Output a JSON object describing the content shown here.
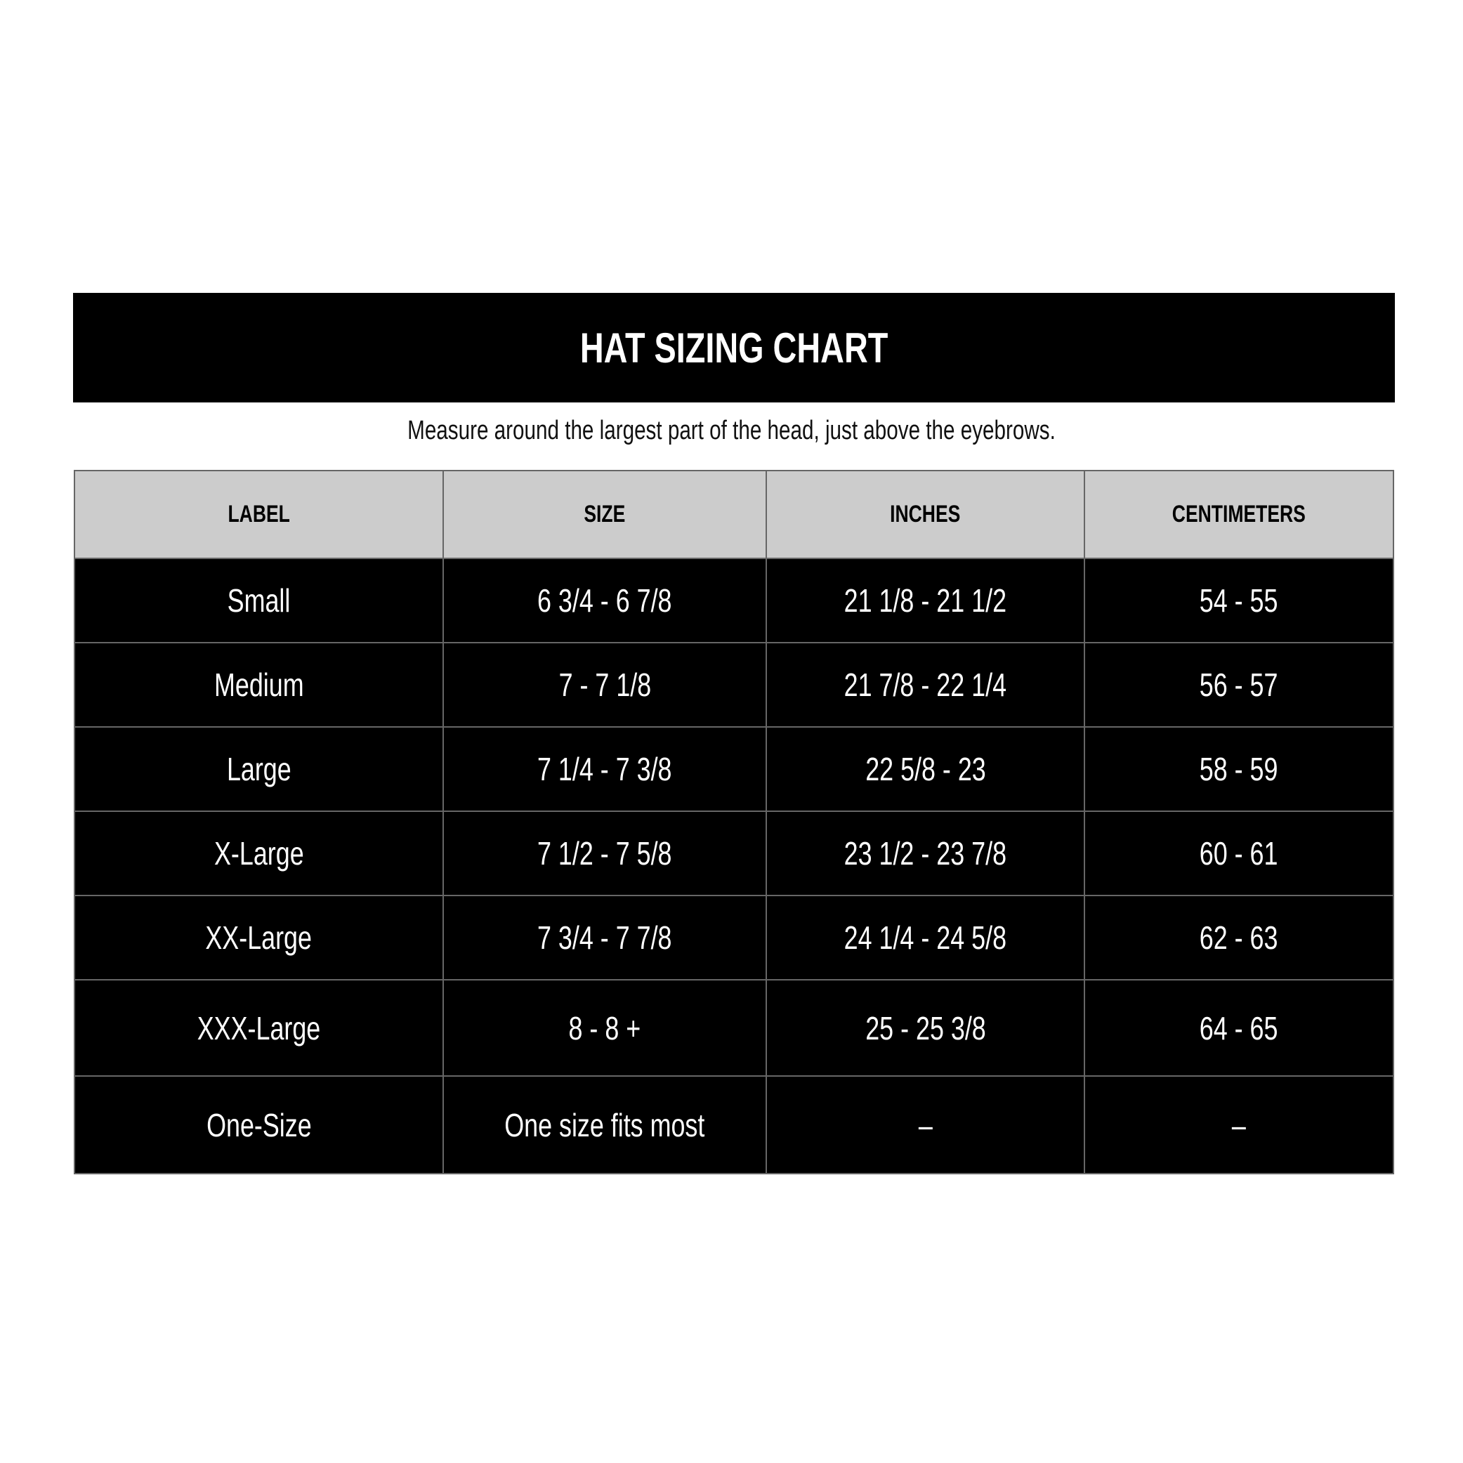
{
  "title": "HAT SIZING CHART",
  "subtitle": "Measure around the largest part of the head, just above the eyebrows.",
  "table": {
    "headers": [
      "LABEL",
      "SIZE",
      "INCHES",
      "CENTIMETERS"
    ],
    "rows": [
      [
        "Small",
        "6 3/4 - 6 7/8",
        "21 1/8 - 21 1/2",
        "54 - 55"
      ],
      [
        "Medium",
        "7 - 7 1/8",
        "21 7/8 - 22 1/4",
        "56 - 57"
      ],
      [
        "Large",
        "7 1/4 - 7 3/8",
        "22 5/8 - 23",
        "58 - 59"
      ],
      [
        "X-Large",
        "7 1/2 - 7 5/8",
        "23 1/2 - 23 7/8",
        "60 - 61"
      ],
      [
        "XX-Large",
        "7 3/4 - 7 7/8",
        "24 1/4 - 24 5/8",
        "62 - 63"
      ],
      [
        "XXX-Large",
        "8 - 8 +",
        "25 - 25 3/8",
        "64 - 65"
      ],
      [
        "One-Size",
        "One size fits most",
        "–",
        "–"
      ]
    ]
  },
  "colors": {
    "header_bar": "#000000",
    "column_header_bg": "#cccccc",
    "row_bg": "#000000",
    "row_text": "#ffffff"
  }
}
